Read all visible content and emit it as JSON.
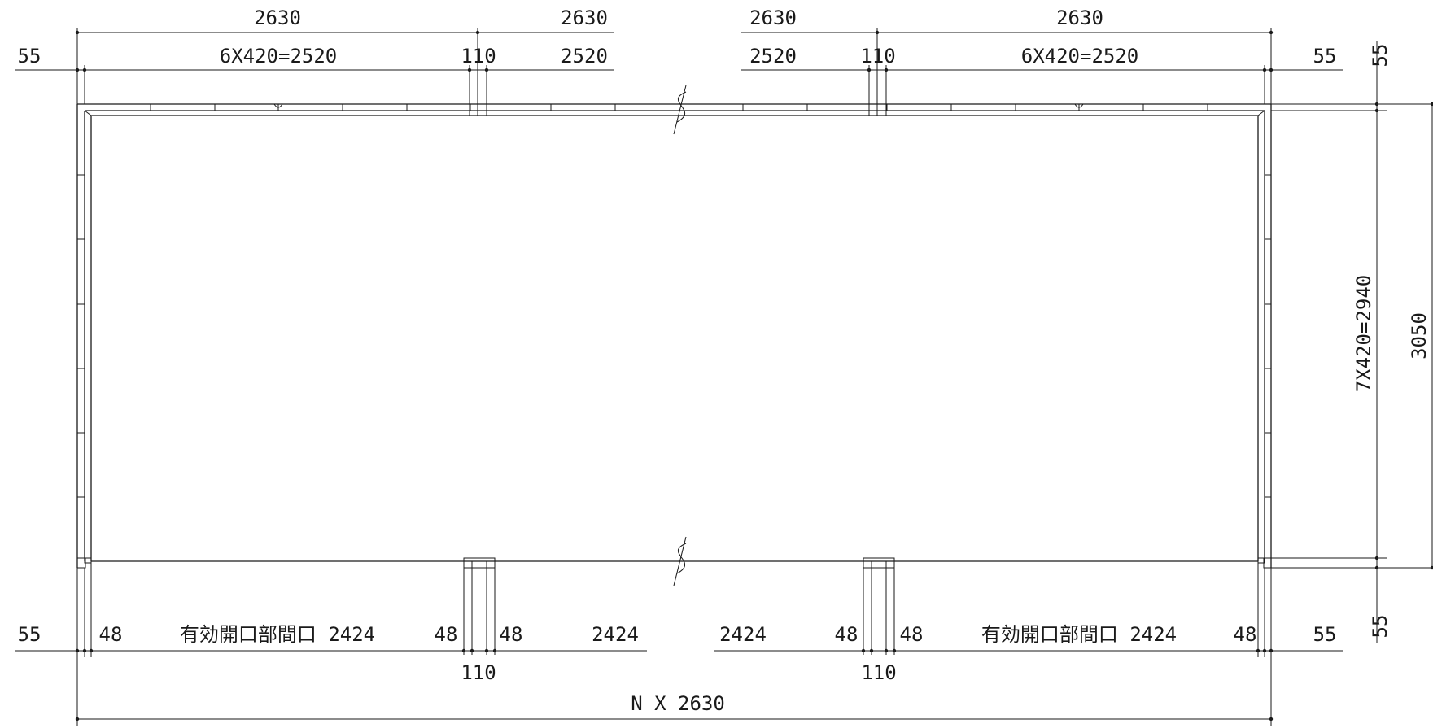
{
  "top_dims_row1": [
    {
      "id": "top-left-span",
      "text": "2630"
    },
    {
      "id": "top-left-mid-span",
      "text": "2630"
    },
    {
      "id": "top-right-mid-span",
      "text": "2630"
    },
    {
      "id": "top-right-span",
      "text": "2630"
    }
  ],
  "top_dims_row2": [
    {
      "id": "top-left-edge",
      "text": "55"
    },
    {
      "id": "top-left-panels",
      "text": "6X420=2520"
    },
    {
      "id": "top-left-post",
      "text": "110"
    },
    {
      "id": "top-left-mid",
      "text": "2520"
    },
    {
      "id": "top-right-mid",
      "text": "2520"
    },
    {
      "id": "top-right-post",
      "text": "110"
    },
    {
      "id": "top-right-panels",
      "text": "6X420=2520"
    },
    {
      "id": "top-right-edge",
      "text": "55"
    }
  ],
  "right_dims": {
    "edge_top": "55",
    "panels": "7X420=2940",
    "total": "3050",
    "edge_bottom": "55"
  },
  "bottom_dims": [
    {
      "id": "bottom-left-edge",
      "text": "55"
    },
    {
      "id": "bottom-left-48a",
      "text": "48"
    },
    {
      "id": "bottom-left-opening",
      "text": "有効開口部間口  2424"
    },
    {
      "id": "bottom-left-48b",
      "text": "48"
    },
    {
      "id": "bottom-left-48c",
      "text": "48"
    },
    {
      "id": "bottom-left-mid",
      "text": "2424"
    },
    {
      "id": "bottom-right-mid",
      "text": "2424"
    },
    {
      "id": "bottom-right-48a",
      "text": "48"
    },
    {
      "id": "bottom-right-48b",
      "text": "48"
    },
    {
      "id": "bottom-right-opening",
      "text": "有効開口部間口  2424"
    },
    {
      "id": "bottom-right-48c",
      "text": "48"
    },
    {
      "id": "bottom-right-edge",
      "text": "55"
    }
  ],
  "post_dims": {
    "left": "110",
    "right": "110"
  },
  "overall": "N X 2630"
}
